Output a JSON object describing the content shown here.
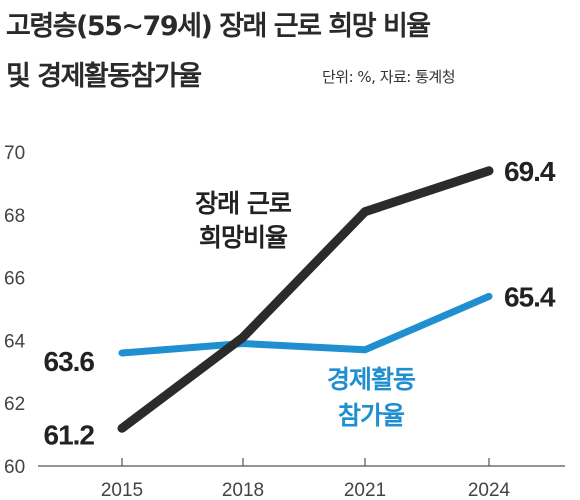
{
  "header": {
    "title_line1": "고령층(55~79세) 장래 근로 희망 비율",
    "title_line2": "및 경제활동참가율",
    "source": "단위: %, 자료: 통계청"
  },
  "chart_data": {
    "type": "line",
    "x": [
      "2015",
      "2018",
      "2021",
      "2024"
    ],
    "ylim": [
      60,
      70
    ],
    "yticks": [
      60,
      62,
      64,
      66,
      68,
      70
    ],
    "grid": false,
    "series": [
      {
        "name_lines": [
          "장래 근로",
          "희망비율"
        ],
        "color": "#2b2b2b",
        "values": [
          61.2,
          64.1,
          68.1,
          69.4
        ],
        "labels": {
          "0": "61.2",
          "3": "69.4"
        }
      },
      {
        "name_lines": [
          "경제활동",
          "참가율"
        ],
        "color": "#1f8fd0",
        "values": [
          63.6,
          63.9,
          63.7,
          65.4
        ],
        "labels": {
          "0": "63.6",
          "3": "65.4"
        }
      }
    ]
  }
}
